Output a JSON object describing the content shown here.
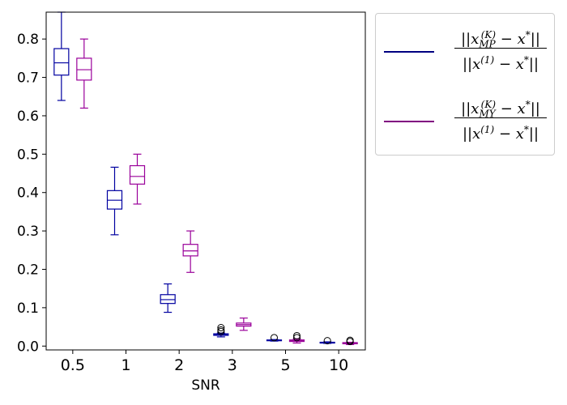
{
  "chart_data": {
    "type": "box",
    "categories": [
      "0.5",
      "1",
      "2",
      "3",
      "5",
      "10"
    ],
    "xlabel": "SNR",
    "ylabel": "",
    "title": "",
    "ylim": [
      -0.01,
      0.87
    ],
    "yticks": [
      "0.0",
      "0.1",
      "0.2",
      "0.3",
      "0.4",
      "0.5",
      "0.6",
      "0.7",
      "0.8"
    ],
    "grid": false,
    "legend_position": "outside-right",
    "series": [
      {
        "name": "||x_MP^(K) - x*|| / ||x^(1) - x*||",
        "color": "#0000a0",
        "boxes": [
          {
            "whislo": 0.64,
            "q1": 0.706,
            "med": 0.738,
            "q3": 0.775,
            "whishi": 0.87,
            "fliers": []
          },
          {
            "whislo": 0.29,
            "q1": 0.357,
            "med": 0.38,
            "q3": 0.405,
            "whishi": 0.466,
            "fliers": []
          },
          {
            "whislo": 0.088,
            "q1": 0.111,
            "med": 0.121,
            "q3": 0.134,
            "whishi": 0.162,
            "fliers": []
          },
          {
            "whislo": 0.024,
            "q1": 0.028,
            "med": 0.03,
            "q3": 0.032,
            "whishi": 0.034,
            "fliers": [
              0.038,
              0.042,
              0.048
            ]
          },
          {
            "whislo": 0.013,
            "q1": 0.014,
            "med": 0.015,
            "q3": 0.016,
            "whishi": 0.017,
            "fliers": [
              0.022
            ]
          },
          {
            "whislo": 0.007,
            "q1": 0.008,
            "med": 0.009,
            "q3": 0.01,
            "whishi": 0.011,
            "fliers": [
              0.014
            ]
          }
        ]
      },
      {
        "name": "||x_MY^(K) - x*|| / ||x^(1) - x*||",
        "color": "#9a009a",
        "boxes": [
          {
            "whislo": 0.62,
            "q1": 0.693,
            "med": 0.72,
            "q3": 0.75,
            "whishi": 0.8,
            "fliers": []
          },
          {
            "whislo": 0.37,
            "q1": 0.422,
            "med": 0.442,
            "q3": 0.47,
            "whishi": 0.5,
            "fliers": []
          },
          {
            "whislo": 0.192,
            "q1": 0.235,
            "med": 0.248,
            "q3": 0.265,
            "whishi": 0.3,
            "fliers": []
          },
          {
            "whislo": 0.041,
            "q1": 0.052,
            "med": 0.056,
            "q3": 0.06,
            "whishi": 0.073,
            "fliers": []
          },
          {
            "whislo": 0.008,
            "q1": 0.012,
            "med": 0.014,
            "q3": 0.016,
            "whishi": 0.019,
            "fliers": [
              0.022,
              0.027
            ]
          },
          {
            "whislo": 0.004,
            "q1": 0.006,
            "med": 0.007,
            "q3": 0.009,
            "whishi": 0.01,
            "fliers": [
              0.012,
              0.015
            ]
          }
        ]
      }
    ]
  },
  "legend": {
    "items": [
      {
        "color": "#000080",
        "num_main": "||x",
        "num_sub": "MP",
        "num_sup": "(K)",
        "num_tail": " − x",
        "num_star": "*",
        "num_end": "||",
        "den_main": "||x",
        "den_sup": "(1)",
        "den_tail": " − x",
        "den_star": "*",
        "den_end": "||"
      },
      {
        "color": "#800080",
        "num_main": "||x",
        "num_sub": "MY",
        "num_sup": "(K)",
        "num_tail": " − x",
        "num_star": "*",
        "num_end": "||",
        "den_main": "||x",
        "den_sup": "(1)",
        "den_tail": " − x",
        "den_star": "*",
        "den_end": "||"
      }
    ]
  }
}
